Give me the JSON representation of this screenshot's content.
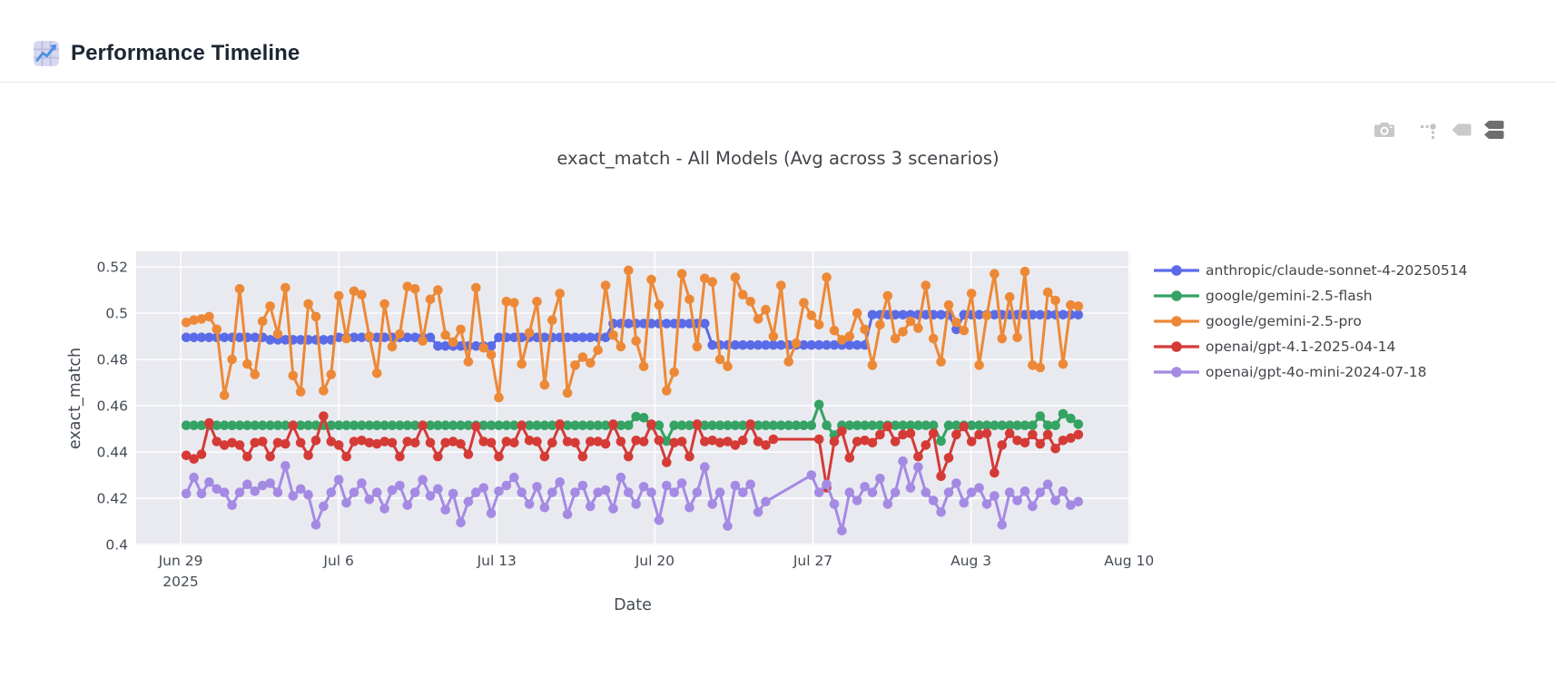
{
  "header": {
    "title": "Performance Timeline",
    "icon": "chart-increasing"
  },
  "modebar": {
    "icons": [
      "camera-icon",
      "spikelines-icon",
      "hover-closest-icon",
      "hover-compare-icon"
    ],
    "active_icon": "hover-compare-icon"
  },
  "colors": {
    "plot_bg": "#E9EAF0",
    "grid": "#FFFFFF",
    "tick_text": "#444b54",
    "title_text": "#42454a",
    "header_text": "#1c2733",
    "modebar_inactive": "#c8c8c8",
    "modebar_active": "#6e6e6e",
    "divider": "#e7e9ec"
  },
  "chart_data": {
    "type": "line",
    "title": "exact_match - All Models (Avg across 3 scenarios)",
    "xlabel": "Date",
    "ylabel": "exact_match",
    "grid": true,
    "legend_position": "right",
    "x_axis": {
      "start_date": "2025-06-29",
      "domain_days": [
        -1.97,
        42.05
      ],
      "ticks": [
        {
          "day": 0,
          "label": "Jun 29",
          "sublabel": "2025"
        },
        {
          "day": 7,
          "label": "Jul 6"
        },
        {
          "day": 14,
          "label": "Jul 13"
        },
        {
          "day": 21,
          "label": "Jul 20"
        },
        {
          "day": 28,
          "label": "Jul 27"
        },
        {
          "day": 35,
          "label": "Aug 3"
        },
        {
          "day": 42,
          "label": "Aug 10"
        }
      ]
    },
    "y_axis": {
      "range": [
        0.3996,
        0.5267
      ],
      "ticks": [
        {
          "value": 0.4,
          "label": "0.4"
        },
        {
          "value": 0.42,
          "label": "0.42"
        },
        {
          "value": 0.44,
          "label": "0.44"
        },
        {
          "value": 0.46,
          "label": "0.46"
        },
        {
          "value": 0.48,
          "label": "0.48"
        },
        {
          "value": 0.5,
          "label": "0.5"
        },
        {
          "value": 0.52,
          "label": "0.52"
        }
      ]
    },
    "series_x": {
      "start_day": 0.25,
      "step_days": 0.3376
    },
    "series": [
      {
        "name": "anthropic/claude-sonnet-4-20250514",
        "color": "#5A6BE8",
        "values": [
          0.4895,
          0.4895,
          0.4895,
          0.4895,
          0.4895,
          0.4895,
          0.4895,
          0.4895,
          0.4895,
          0.4895,
          0.4895,
          0.4885,
          0.4885,
          0.4885,
          0.4885,
          0.4885,
          0.4885,
          0.4885,
          0.4885,
          0.4885,
          0.4895,
          0.4895,
          0.4895,
          0.4895,
          0.4895,
          0.4895,
          0.4895,
          0.4895,
          0.4895,
          0.4895,
          0.4895,
          0.4895,
          0.4895,
          0.4858,
          0.4858,
          0.4858,
          0.4858,
          0.4858,
          0.4858,
          0.4858,
          0.4858,
          0.4895,
          0.4895,
          0.4895,
          0.4895,
          0.4895,
          0.4895,
          0.4895,
          0.4895,
          0.4895,
          0.4895,
          0.4895,
          0.4895,
          0.4895,
          0.4895,
          0.4895,
          0.4955,
          0.4955,
          0.4955,
          0.4955,
          0.4955,
          0.4955,
          0.4955,
          0.4955,
          0.4955,
          0.4955,
          0.4955,
          0.4955,
          0.4955,
          0.4862,
          0.4862,
          0.4862,
          0.4862,
          0.4862,
          0.4862,
          0.4862,
          0.4862,
          0.4862,
          0.4862,
          0.4862,
          0.4862,
          0.4862,
          0.4862,
          0.4862,
          0.4862,
          0.4862,
          0.4862,
          0.4862,
          0.4862,
          0.4862,
          0.4993,
          0.4993,
          0.4993,
          0.4993,
          0.4993,
          0.4993,
          0.4993,
          0.4993,
          0.4993,
          0.4993,
          0.4993,
          0.493,
          0.4993,
          0.4993,
          0.4993,
          0.4993,
          0.4993,
          0.4993,
          0.4993,
          0.4993,
          0.4993,
          0.4993,
          0.4993,
          0.4993,
          0.4993,
          0.4993,
          0.4993,
          0.4993
        ]
      },
      {
        "name": "google/gemini-2.5-flash",
        "color": "#34A363",
        "values": [
          0.4515,
          0.4515,
          0.4515,
          0.4515,
          0.4515,
          0.4515,
          0.4515,
          0.4515,
          0.4515,
          0.4515,
          0.4515,
          0.4515,
          0.4515,
          0.4515,
          0.4515,
          0.4515,
          0.4515,
          0.4515,
          0.4515,
          0.4515,
          0.4515,
          0.4515,
          0.4515,
          0.4515,
          0.4515,
          0.4515,
          0.4515,
          0.4515,
          0.4515,
          0.4515,
          0.4515,
          0.4515,
          0.4515,
          0.4515,
          0.4515,
          0.4515,
          0.4515,
          0.4515,
          0.4515,
          0.4515,
          0.4515,
          0.4515,
          0.4515,
          0.4515,
          0.4515,
          0.4515,
          0.4515,
          0.4515,
          0.4515,
          0.4515,
          0.4515,
          0.4515,
          0.4515,
          0.4515,
          0.4515,
          0.4515,
          0.4515,
          0.4515,
          0.4515,
          0.4553,
          0.4548,
          0.4515,
          0.4515,
          0.4447,
          0.4515,
          0.4515,
          0.4515,
          0.4515,
          0.4515,
          0.4515,
          0.4515,
          0.4515,
          0.4515,
          0.4515,
          0.4515,
          0.4515,
          0.4515,
          0.4515,
          0.4515,
          0.4515,
          0.4515,
          0.4515,
          0.4515,
          0.4605,
          0.4515,
          0.4473,
          0.4515,
          0.4515,
          0.4515,
          0.4515,
          0.4515,
          0.4515,
          0.4515,
          0.4515,
          0.4515,
          0.4515,
          0.4515,
          0.4515,
          0.4515,
          0.4447,
          0.4515,
          0.4515,
          0.4515,
          0.4515,
          0.4515,
          0.4515,
          0.4515,
          0.4515,
          0.4515,
          0.4515,
          0.4515,
          0.4515,
          0.4555,
          0.4515,
          0.4515,
          0.4565,
          0.4545,
          0.452
        ]
      },
      {
        "name": "google/gemini-2.5-pro",
        "color": "#ED8936",
        "values": [
          0.496,
          0.497,
          0.4975,
          0.4985,
          0.493,
          0.4645,
          0.48,
          0.5105,
          0.478,
          0.4735,
          0.4965,
          0.503,
          0.491,
          0.511,
          0.473,
          0.466,
          0.504,
          0.4985,
          0.4665,
          0.4735,
          0.5075,
          0.489,
          0.5095,
          0.508,
          0.49,
          0.474,
          0.504,
          0.4855,
          0.491,
          0.5115,
          0.5105,
          0.488,
          0.506,
          0.51,
          0.4905,
          0.4875,
          0.493,
          0.479,
          0.511,
          0.485,
          0.482,
          0.4635,
          0.505,
          0.5045,
          0.478,
          0.4915,
          0.505,
          0.469,
          0.497,
          0.5085,
          0.4655,
          0.4775,
          0.481,
          0.4785,
          0.484,
          0.512,
          0.4905,
          0.4855,
          0.5185,
          0.488,
          0.477,
          0.5145,
          0.5035,
          0.4665,
          0.4745,
          0.517,
          0.506,
          0.4855,
          0.515,
          0.5135,
          0.48,
          0.477,
          0.5155,
          0.508,
          0.505,
          0.4975,
          0.5015,
          0.49,
          0.512,
          0.479,
          0.487,
          0.5045,
          0.499,
          0.495,
          0.5155,
          0.4925,
          0.4885,
          0.49,
          0.5,
          0.493,
          0.4775,
          0.495,
          0.5075,
          0.489,
          0.492,
          0.4965,
          0.4935,
          0.512,
          0.489,
          0.479,
          0.5035,
          0.496,
          0.4925,
          0.5085,
          0.4775,
          0.499,
          0.517,
          0.489,
          0.507,
          0.4895,
          0.518,
          0.4775,
          0.4765,
          0.509,
          0.5055,
          0.478,
          0.5035,
          0.503
        ]
      },
      {
        "name": "openai/gpt-4.1-2025-04-14",
        "color": "#D53B36",
        "values": [
          0.4385,
          0.437,
          0.439,
          0.4525,
          0.4445,
          0.443,
          0.444,
          0.443,
          0.438,
          0.444,
          0.4445,
          0.438,
          0.444,
          0.4435,
          0.4515,
          0.444,
          0.4385,
          0.445,
          0.4555,
          0.4445,
          0.443,
          0.438,
          0.4445,
          0.445,
          0.444,
          0.4435,
          0.4445,
          0.444,
          0.438,
          0.4445,
          0.444,
          0.4515,
          0.444,
          0.438,
          0.444,
          0.4445,
          0.4435,
          0.439,
          0.451,
          0.4445,
          0.444,
          0.438,
          0.4445,
          0.444,
          0.4515,
          0.445,
          0.4445,
          0.438,
          0.444,
          0.452,
          0.4445,
          0.444,
          0.438,
          0.4445,
          0.4445,
          0.4435,
          0.452,
          0.4445,
          0.438,
          0.445,
          0.4445,
          0.452,
          0.445,
          0.4355,
          0.444,
          0.4445,
          0.438,
          0.452,
          0.4445,
          0.445,
          0.444,
          0.4445,
          0.443,
          0.445,
          0.452,
          0.4445,
          0.443,
          0.4455,
          null,
          null,
          null,
          null,
          null,
          0.4455,
          0.4245,
          0.4445,
          0.449,
          0.4375,
          0.4445,
          0.445,
          0.444,
          0.4475,
          0.451,
          0.4445,
          0.4475,
          0.448,
          0.438,
          0.443,
          0.448,
          0.4295,
          0.4375,
          0.4475,
          0.451,
          0.4445,
          0.4475,
          0.448,
          0.431,
          0.443,
          0.448,
          0.445,
          0.444,
          0.4475,
          0.4435,
          0.4475,
          0.4415,
          0.445,
          0.446,
          0.4475
        ]
      },
      {
        "name": "openai/gpt-4o-mini-2024-07-18",
        "color": "#A58AE4",
        "values": [
          0.422,
          0.429,
          0.422,
          0.427,
          0.424,
          0.4225,
          0.417,
          0.4225,
          0.426,
          0.423,
          0.4255,
          0.4265,
          0.4225,
          0.434,
          0.421,
          0.424,
          0.4215,
          0.4085,
          0.4165,
          0.4225,
          0.428,
          0.418,
          0.4225,
          0.4265,
          0.4195,
          0.4225,
          0.4155,
          0.4235,
          0.4255,
          0.417,
          0.4225,
          0.428,
          0.421,
          0.424,
          0.415,
          0.422,
          0.4095,
          0.4185,
          0.4225,
          0.4245,
          0.4135,
          0.423,
          0.4255,
          0.429,
          0.4225,
          0.4175,
          0.425,
          0.416,
          0.4225,
          0.427,
          0.413,
          0.4225,
          0.4255,
          0.4165,
          0.4225,
          0.4235,
          0.4155,
          0.429,
          0.4225,
          0.4175,
          0.425,
          0.4225,
          0.4105,
          0.4255,
          0.4225,
          0.4265,
          0.416,
          0.4225,
          0.4335,
          0.4175,
          0.4225,
          0.408,
          0.4255,
          0.4225,
          0.426,
          0.414,
          0.4185,
          null,
          null,
          null,
          null,
          null,
          0.43,
          0.4225,
          0.426,
          0.4175,
          0.406,
          0.4225,
          0.419,
          0.425,
          0.4225,
          0.4285,
          0.4175,
          0.4225,
          0.436,
          0.4245,
          0.4335,
          0.4225,
          0.419,
          0.414,
          0.4225,
          0.4265,
          0.418,
          0.4225,
          0.4245,
          0.4175,
          0.421,
          0.4085,
          0.4225,
          0.419,
          0.423,
          0.4165,
          0.4225,
          0.426,
          0.419,
          0.423,
          0.417,
          0.4185
        ]
      }
    ]
  }
}
